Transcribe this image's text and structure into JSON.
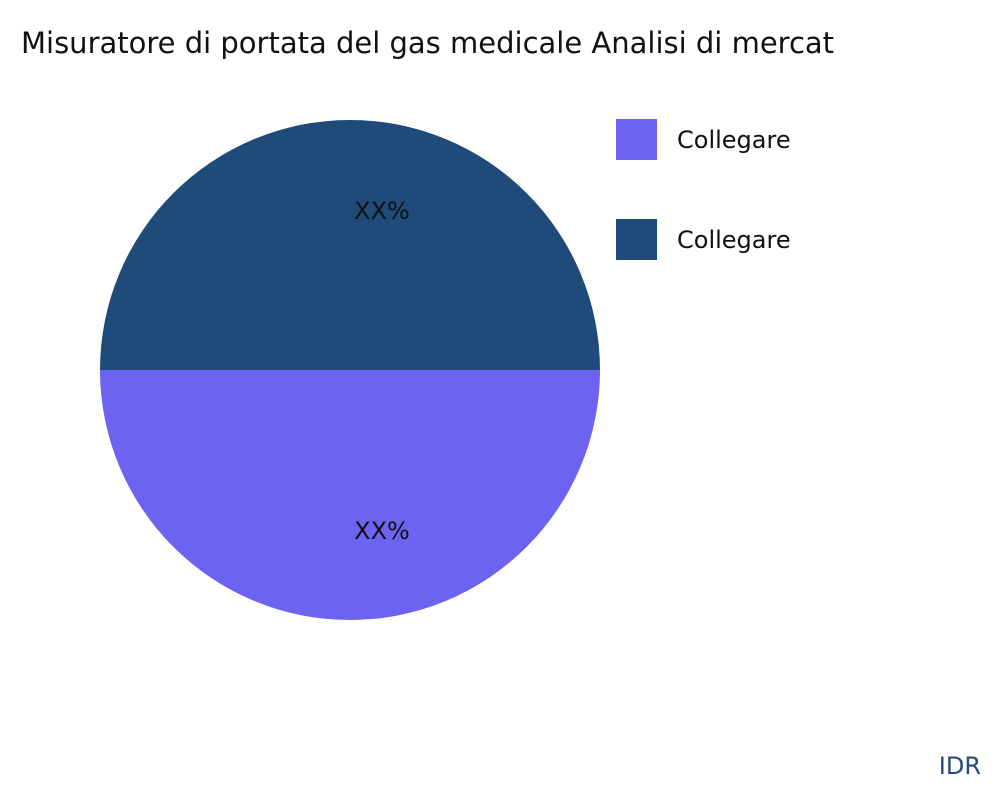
{
  "chart_data": {
    "type": "pie",
    "title": "Misuratore di portata del gas medicale Analisi di mercat",
    "slices": [
      {
        "name": "Collegare",
        "value": 50,
        "label": "XX%",
        "color": "#6c63f0"
      },
      {
        "name": "Collegare",
        "value": 50,
        "label": "XX%",
        "color": "#1f4b7a"
      }
    ],
    "legend_position": "right"
  },
  "watermark": "IDR"
}
